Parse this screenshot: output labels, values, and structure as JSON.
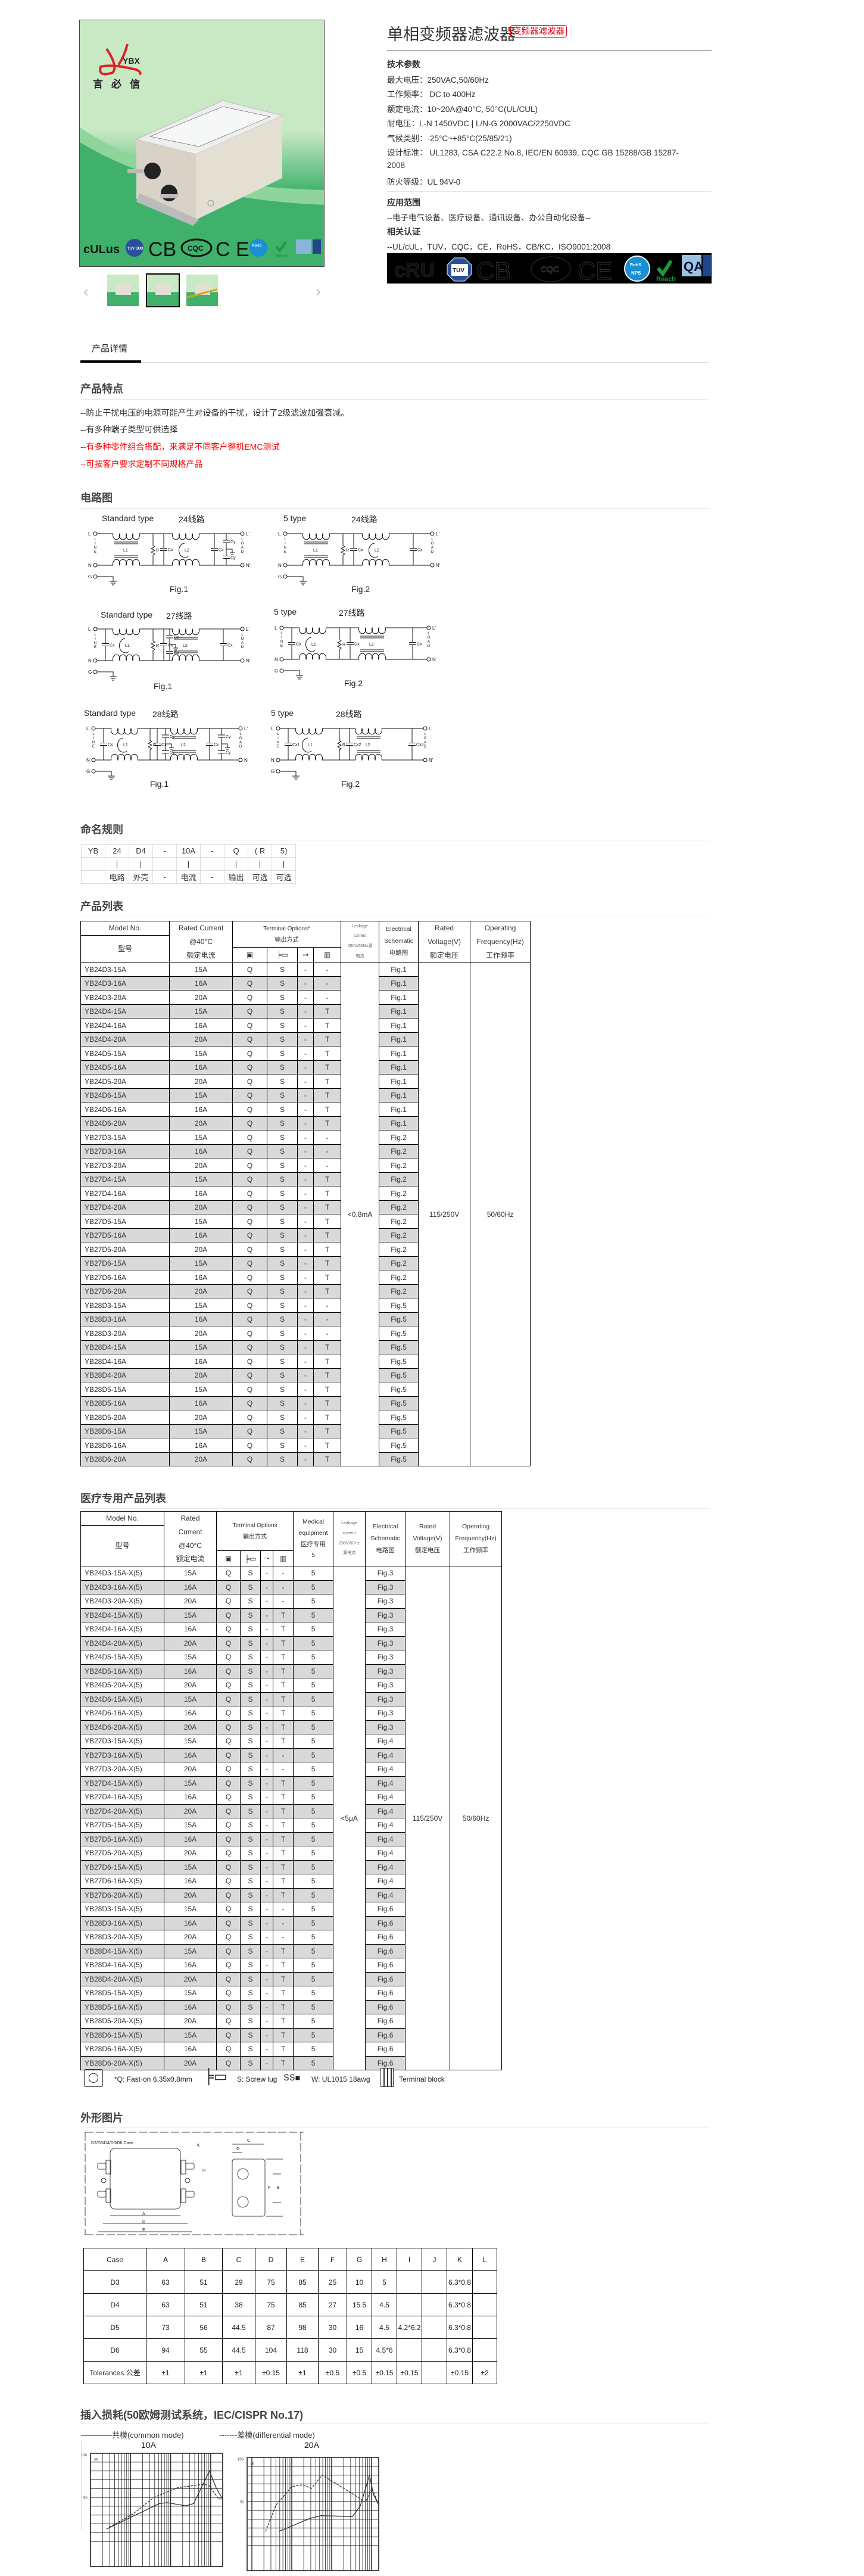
{
  "gallery": {
    "brand_logo": "YBX",
    "brand_cn": "言必信",
    "cert_logos": [
      "cULus",
      "TUV SUD",
      "CB",
      "CQC",
      "CE",
      "RoHS",
      "Reach",
      "QA"
    ],
    "thumbnails": 3,
    "selected_thumbnail": 2
  },
  "product": {
    "title": "单相变频器滤波器",
    "tag": "变频器滤波器",
    "tech_heading": "技术参数",
    "specs": [
      "最大电压：250VAC,50/60Hz",
      "工作频率： DC to 400Hz",
      "额定电流：10~20A@40°C, 50°C(UL/CUL)",
      "耐电压：L-N 1450VDC  |  L/N-G 2000VAC/2250VDC",
      "气候类别：-25°C~+85°C(25/85/21)",
      "设计标准： UL1283, CSA C22.2 No.8, IEC/EN 60939,  CQC GB 15288/GB 15287-",
      "2008",
      "防火等级：UL 94V-0"
    ],
    "app_heading": "应用范围",
    "app_text": "--电子电气设备、医疗设备、通讯设备、办公自动化设备--",
    "cert_heading": "相关认证",
    "cert_text": "--UL/cUL，TUV，CQC，CE，RoHS，CB/KC，ISO9001:2008"
  },
  "tabs": {
    "detail": "产品详情"
  },
  "features": {
    "heading": "产品特点",
    "lines": [
      "--防止干扰电压的电源可能产生对设备的干扰，设计了2级滤波加强衰减。",
      "--有多种端子类型可供选择",
      "--有多种零件组合搭配，来满足不同客户整机EMC测试",
      "--可按客户要求定制不同规格产品"
    ]
  },
  "circuit": {
    "heading": "电路图",
    "diagrams": [
      {
        "type": "Standard type",
        "line": "24线路",
        "fig": "Fig.1"
      },
      {
        "type": "5 type",
        "line": "24线路",
        "fig": "Fig.2"
      },
      {
        "type": "Standard type",
        "line": "27线路",
        "fig": "Fig.1"
      },
      {
        "type": "5 type",
        "line": "27线路",
        "fig": "Fig.2"
      },
      {
        "type": "Standard type",
        "line": "28线路",
        "fig": "Fig.1"
      },
      {
        "type": "5 type",
        "line": "28线路",
        "fig": "Fig.2"
      }
    ],
    "labels": {
      "L": "L",
      "N": "N",
      "G": "G",
      "Lp": "L'",
      "Np": "N'",
      "line": "LINE",
      "load": "LOAD",
      "L1": "L1",
      "L2": "L2",
      "Cx": "Cx",
      "Cy": "Cy",
      "R": "R"
    }
  },
  "naming": {
    "heading": "命名规则",
    "rows": [
      [
        "YB",
        "24",
        "D4",
        "-",
        "10A",
        "-",
        "Q",
        "( R",
        "5)"
      ],
      [
        "",
        "|",
        "|",
        "",
        "|",
        "",
        "|",
        "|",
        "|"
      ],
      [
        "",
        "电路",
        "外壳",
        "-",
        "电流",
        "-",
        "输出",
        "可选",
        "可选"
      ]
    ]
  },
  "product_list": {
    "heading": "产品列表",
    "headers": {
      "model_en": "Model No.",
      "model_cn": "型号",
      "current_en": "Rated Current",
      "current_at": "@40°C",
      "current_cn": "额定电流",
      "terminal_en": "Terminal Options*",
      "terminal_cn": "输出方式",
      "leak_1": "Leakage",
      "leak_2": "current",
      "leak_3": "250V/50Hz漏",
      "leak_4": "电流",
      "schem_1": "Electrical",
      "schem_2": "Schematic",
      "schem_cn": "电路图",
      "volt_1": "Rated",
      "volt_2": "Voltage(V)",
      "volt_cn": "额定电压",
      "freq_1": "Operating",
      "freq_2": "Frequency(Hz)",
      "freq_cn": "工作频率"
    },
    "leakage": "<0.8mA",
    "voltage": "115/250V",
    "frequency": "50/60Hz",
    "rows": [
      [
        "YB24D3-15A",
        "15A",
        "Q",
        "S",
        "-",
        "-",
        "Fig.1"
      ],
      [
        "YB24D3-16A",
        "16A",
        "Q",
        "S",
        "-",
        "-",
        "Fig.1"
      ],
      [
        "YB24D3-20A",
        "20A",
        "Q",
        "S",
        "-",
        "-",
        "Fig.1"
      ],
      [
        "YB24D4-15A",
        "15A",
        "Q",
        "S",
        "-",
        "T",
        "Fig.1"
      ],
      [
        "YB24D4-16A",
        "16A",
        "Q",
        "S",
        "-",
        "T",
        "Fig.1"
      ],
      [
        "YB24D4-20A",
        "20A",
        "Q",
        "S",
        "-",
        "T",
        "Fig.1"
      ],
      [
        "YB24D5-15A",
        "15A",
        "Q",
        "S",
        "-",
        "T",
        "Fig.1"
      ],
      [
        "YB24D5-16A",
        "16A",
        "Q",
        "S",
        "-",
        "T",
        "Fig.1"
      ],
      [
        "YB24D5-20A",
        "20A",
        "Q",
        "S",
        "-",
        "T",
        "Fig.1"
      ],
      [
        "YB24D6-15A",
        "15A",
        "Q",
        "S",
        "-",
        "T",
        "Fig.1"
      ],
      [
        "YB24D6-16A",
        "16A",
        "Q",
        "S",
        "-",
        "T",
        "Fig.1"
      ],
      [
        "YB24D6-20A",
        "20A",
        "Q",
        "S",
        "-",
        "T",
        "Fig.1"
      ],
      [
        "YB27D3-15A",
        "15A",
        "Q",
        "S",
        "-",
        "-",
        "Fig.2"
      ],
      [
        "YB27D3-16A",
        "16A",
        "Q",
        "S",
        "-",
        "-",
        "Fig.2"
      ],
      [
        "YB27D3-20A",
        "20A",
        "Q",
        "S",
        "-",
        "-",
        "Fig.2"
      ],
      [
        "YB27D4-15A",
        "15A",
        "Q",
        "S",
        "-",
        "T",
        "Fig.2"
      ],
      [
        "YB27D4-16A",
        "16A",
        "Q",
        "S",
        "-",
        "T",
        "Fig.2"
      ],
      [
        "YB27D4-20A",
        "20A",
        "Q",
        "S",
        "-",
        "T",
        "Fig.2"
      ],
      [
        "YB27D5-15A",
        "15A",
        "Q",
        "S",
        "-",
        "T",
        "Fig.2"
      ],
      [
        "YB27D5-16A",
        "16A",
        "Q",
        "S",
        "-",
        "T",
        "Fig.2"
      ],
      [
        "YB27D5-20A",
        "20A",
        "Q",
        "S",
        "-",
        "T",
        "Fig.2"
      ],
      [
        "YB27D6-15A",
        "15A",
        "Q",
        "S",
        "-",
        "T",
        "Fig.2"
      ],
      [
        "YB27D6-16A",
        "16A",
        "Q",
        "S",
        "-",
        "T",
        "Fig.2"
      ],
      [
        "YB27D6-20A",
        "20A",
        "Q",
        "S",
        "-",
        "T",
        "Fig.2"
      ],
      [
        "YB28D3-15A",
        "15A",
        "Q",
        "S",
        "-",
        "-",
        "Fig.5"
      ],
      [
        "YB28D3-16A",
        "16A",
        "Q",
        "S",
        "-",
        "-",
        "Fig.5"
      ],
      [
        "YB28D3-20A",
        "20A",
        "Q",
        "S",
        "-",
        "-",
        "Fig.5"
      ],
      [
        "YB28D4-15A",
        "15A",
        "Q",
        "S",
        "-",
        "T",
        "Fig.5"
      ],
      [
        "YB28D4-16A",
        "16A",
        "Q",
        "S",
        "-",
        "T",
        "Fig.5"
      ],
      [
        "YB28D4-20A",
        "20A",
        "Q",
        "S",
        "-",
        "T",
        "Fig.5"
      ],
      [
        "YB28D5-15A",
        "15A",
        "Q",
        "S",
        "-",
        "T",
        "Fig.5"
      ],
      [
        "YB28D5-16A",
        "16A",
        "Q",
        "S",
        "-",
        "T",
        "Fig.5"
      ],
      [
        "YB28D5-20A",
        "20A",
        "Q",
        "S",
        "-",
        "T",
        "Fig.5"
      ],
      [
        "YB28D6-15A",
        "15A",
        "Q",
        "S",
        "-",
        "T",
        "Fig.5"
      ],
      [
        "YB28D6-16A",
        "16A",
        "Q",
        "S",
        "-",
        "T",
        "Fig.5"
      ],
      [
        "YB28D6-20A",
        "20A",
        "Q",
        "S",
        "-",
        "T",
        "Fig.5"
      ]
    ]
  },
  "medical_list": {
    "heading": "医疗专用产品列表",
    "headers": {
      "model_en": "Model No.",
      "model_cn": "型号",
      "current_1": "Rated",
      "current_2": "Current",
      "current_at": "@40°C",
      "current_cn": "额定电流",
      "terminal_en": "Terminal Options",
      "terminal_cn": "输出方式",
      "med_1": "Medical",
      "med_2": "equipment",
      "med_cn": "医疗专用",
      "med_4": "5",
      "leak_1": "Leakage",
      "leak_2": "current",
      "leak_3": "250V/50Hz",
      "leak_4": "漏电流",
      "schem_1": "Electrical",
      "schem_2": "Schematic",
      "schem_cn": "电路图",
      "volt_1": "Rated",
      "volt_2": "Voltage(V)",
      "volt_cn": "额定电压",
      "freq_1": "Operating",
      "freq_2": "Frequency(Hz)",
      "freq_cn": "工作频率"
    },
    "leakage": "<5μA",
    "voltage": "115/250V",
    "frequency": "50/60Hz",
    "rows": [
      [
        "YB24D3-15A-X(5)",
        "15A",
        "Q",
        "S",
        "-",
        "-",
        "5",
        "Fig.3"
      ],
      [
        "YB24D3-16A-X(5)",
        "16A",
        "Q",
        "S",
        "-",
        "-",
        "5",
        "Fig.3"
      ],
      [
        "YB24D3-20A-X(5)",
        "20A",
        "Q",
        "S",
        "-",
        "-",
        "5",
        "Fig.3"
      ],
      [
        "YB24D4-15A-X(5)",
        "15A",
        "Q",
        "S",
        "-",
        "T",
        "5",
        "Fig.3"
      ],
      [
        "YB24D4-16A-X(5)",
        "16A",
        "Q",
        "S",
        "-",
        "T",
        "5",
        "Fig.3"
      ],
      [
        "YB24D4-20A-X(5)",
        "20A",
        "Q",
        "S",
        "-",
        "T",
        "5",
        "Fig.3"
      ],
      [
        "YB24D5-15A-X(5)",
        "15A",
        "Q",
        "S",
        "-",
        "T",
        "5",
        "Fig.3"
      ],
      [
        "YB24D5-16A-X(5)",
        "16A",
        "Q",
        "S",
        "-",
        "T",
        "5",
        "Fig.3"
      ],
      [
        "YB24D5-20A-X(5)",
        "20A",
        "Q",
        "S",
        "-",
        "T",
        "5",
        "Fig.3"
      ],
      [
        "YB24D6-15A-X(5)",
        "15A",
        "Q",
        "S",
        "-",
        "T",
        "5",
        "Fig.3"
      ],
      [
        "YB24D6-16A-X(5)",
        "16A",
        "Q",
        "S",
        "-",
        "T",
        "5",
        "Fig.3"
      ],
      [
        "YB24D6-20A-X(5)",
        "20A",
        "Q",
        "S",
        "-",
        "T",
        "5",
        "Fig.3"
      ],
      [
        "YB27D3-15A-X(5)",
        "15A",
        "Q",
        "S",
        "-",
        "T",
        "5",
        "Fig.4"
      ],
      [
        "YB27D3-16A-X(5)",
        "16A",
        "Q",
        "S",
        "-",
        "-",
        "5",
        "Fig.4"
      ],
      [
        "YB27D3-20A-X(5)",
        "20A",
        "Q",
        "S",
        "-",
        "-",
        "5",
        "Fig.4"
      ],
      [
        "YB27D4-15A-X(5)",
        "15A",
        "Q",
        "S",
        "-",
        "T",
        "5",
        "Fig.4"
      ],
      [
        "YB27D4-16A-X(5)",
        "16A",
        "Q",
        "S",
        "-",
        "T",
        "5",
        "Fig.4"
      ],
      [
        "YB27D4-20A-X(5)",
        "20A",
        "Q",
        "S",
        "-",
        "T",
        "5",
        "Fig.4"
      ],
      [
        "YB27D5-15A-X(5)",
        "15A",
        "Q",
        "S",
        "-",
        "T",
        "5",
        "Fig.4"
      ],
      [
        "YB27D5-16A-X(5)",
        "16A",
        "Q",
        "S",
        "-",
        "T",
        "5",
        "Fig.4"
      ],
      [
        "YB27D5-20A-X(5)",
        "20A",
        "Q",
        "S",
        "-",
        "T",
        "5",
        "Fig.4"
      ],
      [
        "YB27D6-15A-X(5)",
        "15A",
        "Q",
        "S",
        "-",
        "T",
        "5",
        "Fig.4"
      ],
      [
        "YB27D6-16A-X(5)",
        "16A",
        "Q",
        "S",
        "-",
        "T",
        "5",
        "Fig.4"
      ],
      [
        "YB27D6-20A-X(5)",
        "20A",
        "Q",
        "S",
        "-",
        "T",
        "5",
        "Fig.4"
      ],
      [
        "YB28D3-15A-X(5)",
        "15A",
        "Q",
        "S",
        "-",
        "-",
        "5",
        "Fig.6"
      ],
      [
        "YB28D3-16A-X(5)",
        "16A",
        "Q",
        "S",
        "-",
        "-",
        "5",
        "Fig.6"
      ],
      [
        "YB28D3-20A-X(5)",
        "20A",
        "Q",
        "S",
        "-",
        "-",
        "5",
        "Fig.6"
      ],
      [
        "YB28D4-15A-X(5)",
        "15A",
        "Q",
        "S",
        "-",
        "T",
        "5",
        "Fig.6"
      ],
      [
        "YB28D4-16A-X(5)",
        "16A",
        "Q",
        "S",
        "-",
        "T",
        "5",
        "Fig.6"
      ],
      [
        "YB28D4-20A-X(5)",
        "20A",
        "Q",
        "S",
        "-",
        "T",
        "5",
        "Fig.6"
      ],
      [
        "YB28D5-15A-X(5)",
        "15A",
        "Q",
        "S",
        "-",
        "T",
        "5",
        "Fig.6"
      ],
      [
        "YB28D5-16A-X(5)",
        "16A",
        "Q",
        "S",
        "-",
        "T",
        "5",
        "Fig.6"
      ],
      [
        "YB28D5-20A-X(5)",
        "20A",
        "Q",
        "S",
        "-",
        "T",
        "5",
        "Fig.6"
      ],
      [
        "YB28D6-15A-X(5)",
        "15A",
        "Q",
        "S",
        "-",
        "T",
        "5",
        "Fig.6"
      ],
      [
        "YB28D6-16A-X(5)",
        "16A",
        "Q",
        "S",
        "-",
        "T",
        "5",
        "Fig.6"
      ],
      [
        "YB28D6-20A-X(5)",
        "20A",
        "Q",
        "S",
        "-",
        "T",
        "5",
        "Fig.6"
      ]
    ],
    "legend": [
      "*Q: Fast-on 6.35x0.8mm",
      "S: Screw lug",
      "W: UL1015 18awg",
      "Terminal block"
    ]
  },
  "outline": {
    "heading": "外形图片",
    "case_label": "D2/D3/D4/D5/D6 Case",
    "dim_letters": [
      "A",
      "B",
      "C",
      "D",
      "E",
      "F",
      "G",
      "H",
      "K"
    ],
    "table": [
      [
        "Case",
        "A",
        "B",
        "C",
        "D",
        "E",
        "F",
        "G",
        "H",
        "I",
        "J",
        "K",
        "L"
      ],
      [
        "D3",
        "63",
        "51",
        "29",
        "75",
        "85",
        "25",
        "10",
        "5",
        "",
        "",
        "6.3*0.8",
        ""
      ],
      [
        "D4",
        "63",
        "51",
        "38",
        "75",
        "85",
        "27",
        "15.5",
        "4.5",
        "",
        "",
        "6.3*0.8",
        ""
      ],
      [
        "D5",
        "73",
        "56",
        "44.5",
        "87",
        "98",
        "30",
        "16",
        "4.5",
        "4.2*6.2",
        "",
        "6.3*0.8",
        ""
      ],
      [
        "D6",
        "94",
        "55",
        "44.5",
        "104",
        "118",
        "30",
        "15",
        "4.5*6",
        "",
        "",
        "6.3*0.8",
        ""
      ],
      [
        "Tolerances 公差",
        "±1",
        "±1",
        "±1",
        "±0.15",
        "±1",
        "±0.5",
        "±0.5",
        "±0.15",
        "±0.15",
        "",
        "±0.15",
        "±2"
      ]
    ]
  },
  "insertion_loss": {
    "heading": "插入损耗(50欧姆测试系统，IEC/CISPR No.17)",
    "legend_common": "————共模(common mode)",
    "legend_diff": "-------差模(differential mode)",
    "charts": [
      {
        "title": "10A",
        "y_unit": "dB",
        "y_ticks": [
          "100",
          "50"
        ]
      },
      {
        "title": "20A",
        "y_unit": "dB",
        "y_ticks": [
          "100",
          "50"
        ]
      }
    ]
  },
  "colors": {
    "accent_red": "#e60012",
    "row_shade": "#d9d9d9",
    "green": "#3fb16b"
  }
}
